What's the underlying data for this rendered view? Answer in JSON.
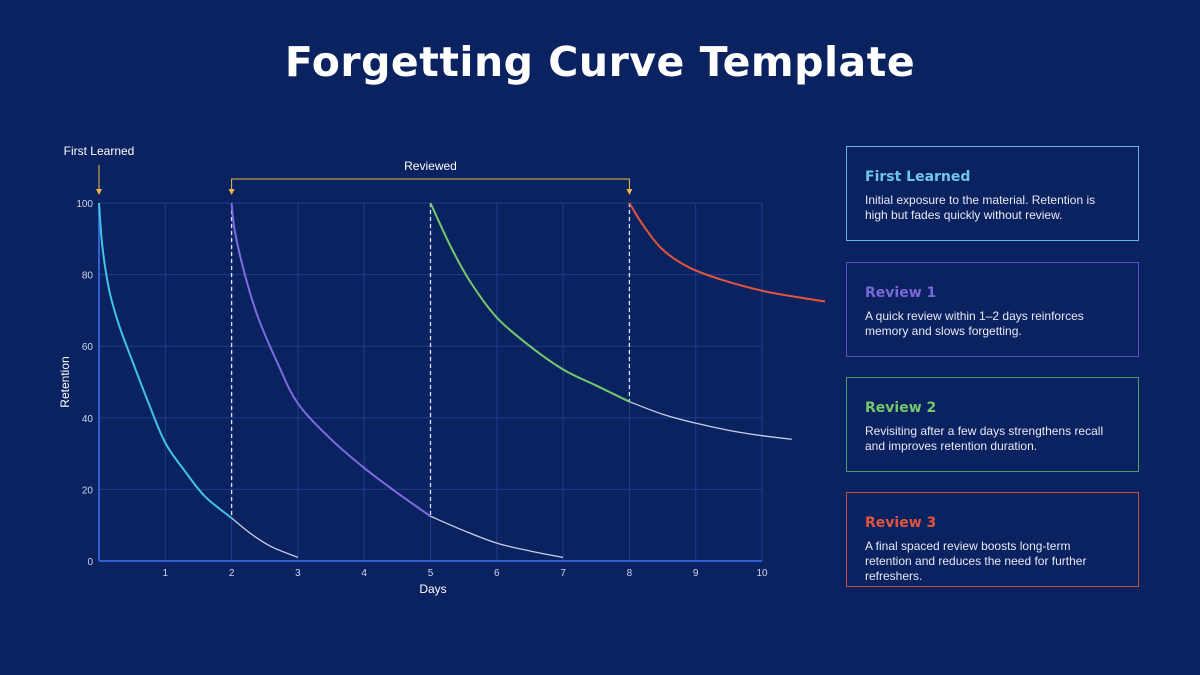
{
  "title": "Forgetting Curve Template",
  "chart_data": {
    "type": "line",
    "xlabel": "Days",
    "ylabel": "Retention",
    "xlim": [
      0,
      10
    ],
    "ylim": [
      0,
      100
    ],
    "xticks": [
      1,
      2,
      3,
      4,
      5,
      6,
      7,
      8,
      9,
      10
    ],
    "yticks": [
      0,
      20,
      40,
      60,
      80,
      100
    ],
    "grid": true,
    "annotations": {
      "first_learned": {
        "label": "First Learned",
        "x": 0
      },
      "reviewed": {
        "label": "Reviewed",
        "x_from": 2,
        "x_to": 8
      },
      "review_markers": [
        2,
        5,
        8
      ]
    },
    "series": [
      {
        "color": "#3fc3e6",
        "points": [
          [
            0,
            100
          ],
          [
            0.05,
            88
          ],
          [
            0.15,
            76
          ],
          [
            0.3,
            66
          ],
          [
            0.5,
            56
          ],
          [
            0.75,
            44
          ],
          [
            1,
            33
          ],
          [
            1.3,
            25
          ],
          [
            1.6,
            18
          ],
          [
            2,
            12
          ]
        ],
        "tail": [
          [
            2,
            12
          ],
          [
            2.3,
            7.5
          ],
          [
            2.6,
            4
          ],
          [
            3,
            1
          ]
        ]
      },
      {
        "color": "#7d6be0",
        "points": [
          [
            2,
            100
          ],
          [
            2.05,
            92
          ],
          [
            2.2,
            80
          ],
          [
            2.4,
            68
          ],
          [
            2.7,
            55
          ],
          [
            3,
            44
          ],
          [
            3.5,
            34
          ],
          [
            4,
            26
          ],
          [
            4.5,
            19
          ],
          [
            5,
            12.5
          ]
        ],
        "tail": [
          [
            5,
            12.5
          ],
          [
            5.5,
            8.5
          ],
          [
            6,
            5
          ],
          [
            6.5,
            2.8
          ],
          [
            7,
            1
          ]
        ]
      },
      {
        "color": "#74c96a",
        "points": [
          [
            5,
            100
          ],
          [
            5.3,
            88
          ],
          [
            5.6,
            78
          ],
          [
            6,
            68
          ],
          [
            6.5,
            60
          ],
          [
            7,
            53.5
          ],
          [
            7.5,
            49
          ],
          [
            8,
            44.5
          ]
        ],
        "tail": [
          [
            8,
            44.5
          ],
          [
            8.5,
            41
          ],
          [
            9,
            38.5
          ],
          [
            9.5,
            36.5
          ],
          [
            10,
            35
          ],
          [
            10.45,
            34
          ]
        ]
      },
      {
        "color": "#e2553d",
        "points": [
          [
            8,
            100
          ],
          [
            8.2,
            94
          ],
          [
            8.5,
            87
          ],
          [
            8.9,
            82
          ],
          [
            9.4,
            78.5
          ],
          [
            10,
            75.5
          ],
          [
            10.5,
            73.8
          ],
          [
            10.95,
            72.5
          ]
        ],
        "tail": []
      }
    ]
  },
  "cards": [
    {
      "title": "First Learned",
      "text": "Initial exposure to the material. Retention is high but fades quickly without review.",
      "color": "#6fc6ea",
      "border": "#5fb6e0"
    },
    {
      "title": "Review 1",
      "text": "A quick review within 1–2 days reinforces memory and slows forgetting.",
      "color": "#7868d8",
      "border": "#5a52c0"
    },
    {
      "title": "Review 2",
      "text": "Revisiting after a few days strengthens recall and improves retention duration.",
      "color": "#74c96a",
      "border": "#4a9d6a"
    },
    {
      "title": "Review 3",
      "text": "A final spaced review boosts long-term retention and reduces the need for further refreshers.",
      "color": "#e2553d",
      "border": "#c24e3c"
    }
  ]
}
